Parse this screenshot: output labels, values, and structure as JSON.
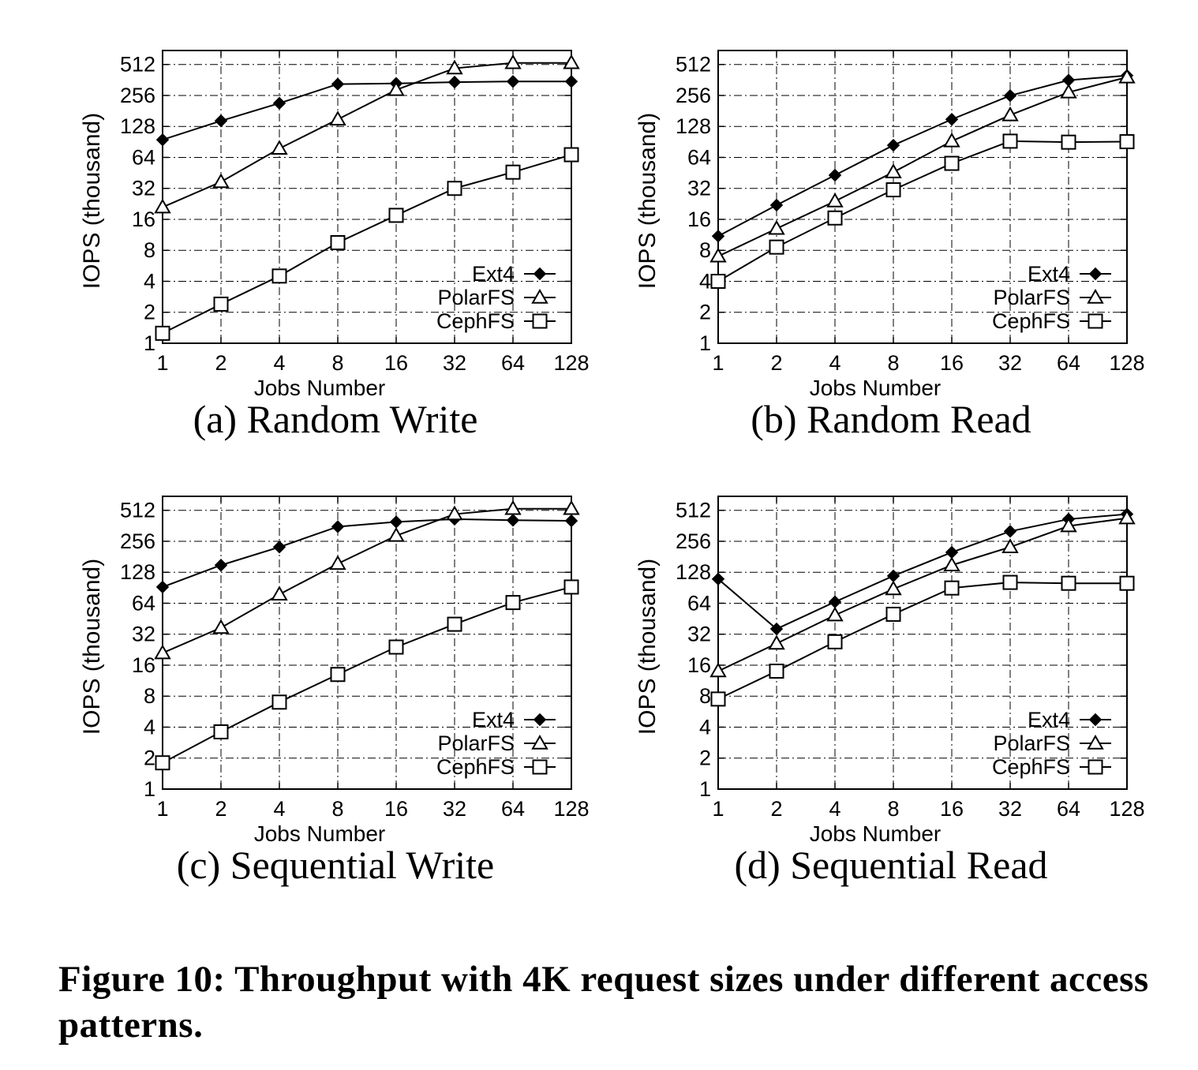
{
  "caption": "Figure 10: Throughput with 4K request sizes under different access patterns.",
  "chart_data": [
    {
      "type": "line",
      "subtitle": "(a) Random Write",
      "xlabel": "Jobs Number",
      "ylabel": "IOPS (thousand)",
      "x": [
        1,
        2,
        4,
        8,
        16,
        32,
        64,
        128
      ],
      "xticks": [
        "1",
        "2",
        "4",
        "8",
        "16",
        "32",
        "64",
        "128"
      ],
      "yticks": [
        "1",
        "2",
        "4",
        "8",
        "16",
        "32",
        "64",
        "128",
        "256",
        "512"
      ],
      "xscale": "log2",
      "yscale": "log2",
      "xlim": [
        1,
        128
      ],
      "ylim": [
        1,
        700
      ],
      "grid": true,
      "legend_position": "bottom-right",
      "series": [
        {
          "name": "Ext4",
          "marker": "filled-diamond",
          "values": [
            95,
            145,
            215,
            330,
            335,
            345,
            350,
            350
          ]
        },
        {
          "name": "PolarFS",
          "marker": "open-triangle",
          "values": [
            21,
            37,
            78,
            150,
            290,
            470,
            530,
            530
          ]
        },
        {
          "name": "CephFS",
          "marker": "open-square",
          "values": [
            1.25,
            2.4,
            4.5,
            9.5,
            17.5,
            32,
            46,
            68
          ]
        }
      ]
    },
    {
      "type": "line",
      "subtitle": "(b) Random Read",
      "xlabel": "Jobs Number",
      "ylabel": "IOPS (thousand)",
      "x": [
        1,
        2,
        4,
        8,
        16,
        32,
        64,
        128
      ],
      "xticks": [
        "1",
        "2",
        "4",
        "8",
        "16",
        "32",
        "64",
        "128"
      ],
      "yticks": [
        "1",
        "2",
        "4",
        "8",
        "16",
        "32",
        "64",
        "128",
        "256",
        "512"
      ],
      "xscale": "log2",
      "yscale": "log2",
      "xlim": [
        1,
        128
      ],
      "ylim": [
        1,
        700
      ],
      "grid": true,
      "legend_position": "bottom-right",
      "series": [
        {
          "name": "Ext4",
          "marker": "filled-diamond",
          "values": [
            11,
            22,
            43,
            84,
            150,
            255,
            360,
            400
          ]
        },
        {
          "name": "PolarFS",
          "marker": "open-triangle",
          "values": [
            7,
            13,
            24,
            46,
            92,
            165,
            275,
            385
          ]
        },
        {
          "name": "CephFS",
          "marker": "open-square",
          "values": [
            4,
            8.6,
            16.5,
            31,
            56,
            92,
            90,
            91
          ]
        }
      ]
    },
    {
      "type": "line",
      "subtitle": "(c) Sequential Write",
      "xlabel": "Jobs Number",
      "ylabel": "IOPS (thousand)",
      "x": [
        1,
        2,
        4,
        8,
        16,
        32,
        64,
        128
      ],
      "xticks": [
        "1",
        "2",
        "4",
        "8",
        "16",
        "32",
        "64",
        "128"
      ],
      "yticks": [
        "1",
        "2",
        "4",
        "8",
        "16",
        "32",
        "64",
        "128",
        "256",
        "512"
      ],
      "xscale": "log2",
      "yscale": "log2",
      "xlim": [
        1,
        128
      ],
      "ylim": [
        1,
        700
      ],
      "grid": true,
      "legend_position": "bottom-right",
      "series": [
        {
          "name": "Ext4",
          "marker": "filled-diamond",
          "values": [
            92,
            150,
            225,
            355,
            395,
            420,
            410,
            405
          ]
        },
        {
          "name": "PolarFS",
          "marker": "open-triangle",
          "values": [
            21,
            37,
            78,
            155,
            290,
            470,
            530,
            530
          ]
        },
        {
          "name": "CephFS",
          "marker": "open-square",
          "values": [
            1.8,
            3.6,
            7,
            13,
            24,
            40,
            65,
            92
          ]
        }
      ]
    },
    {
      "type": "line",
      "subtitle": "(d) Sequential Read",
      "xlabel": "Jobs Number",
      "ylabel": "IOPS (thousand)",
      "x": [
        1,
        2,
        4,
        8,
        16,
        32,
        64,
        128
      ],
      "xticks": [
        "1",
        "2",
        "4",
        "8",
        "16",
        "32",
        "64",
        "128"
      ],
      "yticks": [
        "1",
        "2",
        "4",
        "8",
        "16",
        "32",
        "64",
        "128",
        "256",
        "512"
      ],
      "xscale": "log2",
      "yscale": "log2",
      "xlim": [
        1,
        128
      ],
      "ylim": [
        1,
        700
      ],
      "grid": true,
      "legend_position": "bottom-right",
      "series": [
        {
          "name": "Ext4",
          "marker": "filled-diamond",
          "values": [
            110,
            36,
            66,
            118,
            200,
            320,
            420,
            470
          ]
        },
        {
          "name": "PolarFS",
          "marker": "open-triangle",
          "values": [
            14,
            26,
            49,
            88,
            150,
            225,
            360,
            430
          ]
        },
        {
          "name": "CephFS",
          "marker": "open-square",
          "values": [
            7.5,
            14,
            27,
            50,
            90,
            102,
            100,
            100
          ]
        }
      ]
    }
  ]
}
